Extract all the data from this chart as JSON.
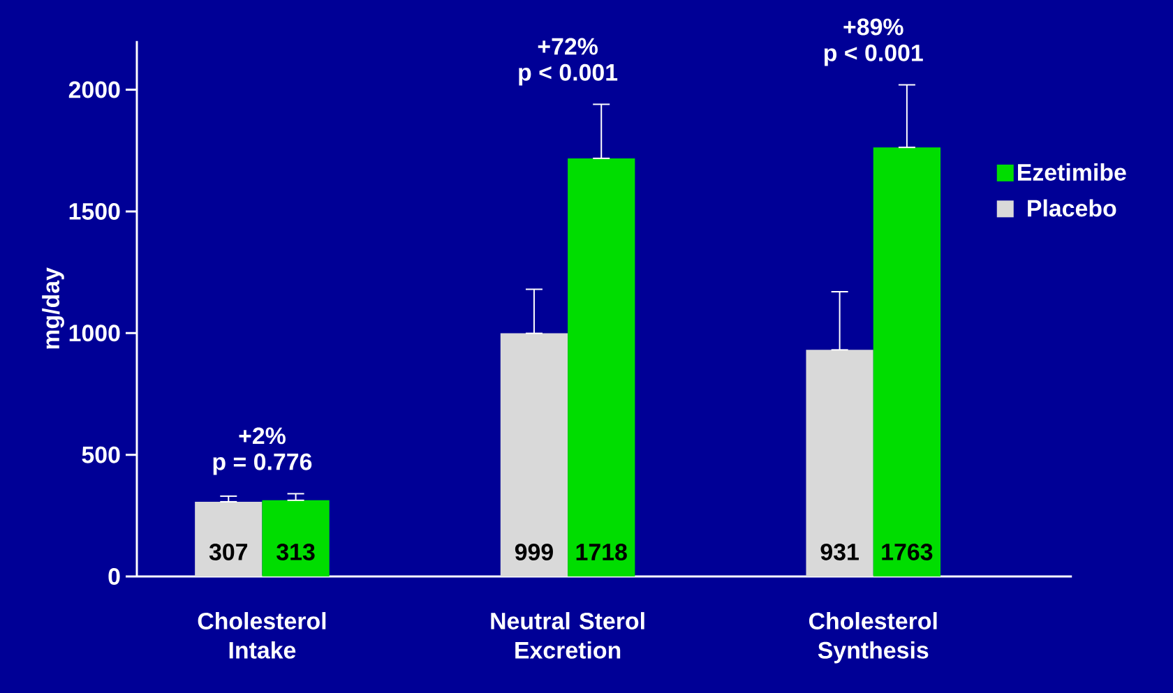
{
  "chart_data": {
    "type": "bar",
    "ylabel": "mg/day",
    "categories": [
      "Cholesterol Intake",
      "Neutral Sterol Excretion",
      "Cholesterol Synthesis"
    ],
    "series": [
      {
        "name": "Placebo",
        "color": "#d9d9d9",
        "values": [
          307,
          999,
          931
        ],
        "errors": [
          [
            307,
            330
          ],
          [
            999,
            1180
          ],
          [
            931,
            1170
          ]
        ]
      },
      {
        "name": "Ezetimibe",
        "color": "#00dd00",
        "values": [
          313,
          1718,
          1763
        ],
        "errors": [
          [
            313,
            340
          ],
          [
            1718,
            1940
          ],
          [
            1763,
            2020
          ]
        ]
      }
    ],
    "ylim": [
      0,
      2200
    ],
    "yticks": [
      0,
      500,
      1000,
      1500,
      2000
    ],
    "data_labels": true,
    "legend": "right",
    "annotations": [
      "+2%",
      "p = 0.776",
      "+72%",
      "p < 0.001",
      "+89%",
      "p < 0.001"
    ]
  }
}
